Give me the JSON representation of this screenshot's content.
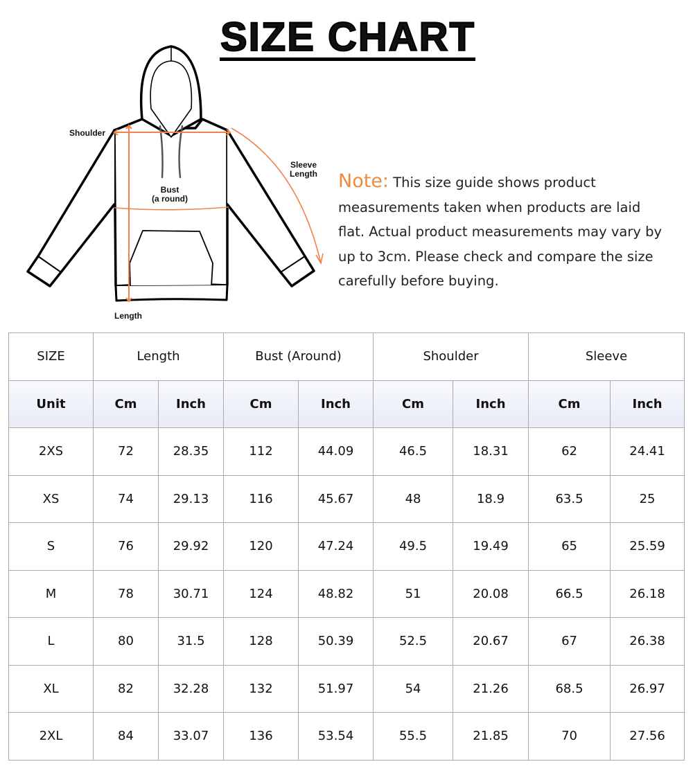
{
  "title": "SIZE CHART",
  "figure": {
    "labels": {
      "shoulder": "Shoulder",
      "sleeve_line1": "Sleeve",
      "sleeve_line2": "Length",
      "bust_line1": "Bust",
      "bust_line2": "(a round)",
      "length": "Length"
    },
    "accent_color": "#f4804a"
  },
  "note": {
    "heading": "Note:",
    "text": "This size guide shows product measurements taken when products are laid flat. Actual product measurements may vary by up to 3cm. Please check and compare the size carefully before buying."
  },
  "table": {
    "header": [
      "SIZE",
      "Length",
      "Bust (Around)",
      "Shoulder",
      "Sleeve"
    ],
    "unit_row": [
      "Unit",
      "Cm",
      "Inch",
      "Cm",
      "Inch",
      "Cm",
      "Inch",
      "Cm",
      "Inch"
    ],
    "rows": [
      [
        "2XS",
        "72",
        "28.35",
        "112",
        "44.09",
        "46.5",
        "18.31",
        "62",
        "24.41"
      ],
      [
        "XS",
        "74",
        "29.13",
        "116",
        "45.67",
        "48",
        "18.9",
        "63.5",
        "25"
      ],
      [
        "S",
        "76",
        "29.92",
        "120",
        "47.24",
        "49.5",
        "19.49",
        "65",
        "25.59"
      ],
      [
        "M",
        "78",
        "30.71",
        "124",
        "48.82",
        "51",
        "20.08",
        "66.5",
        "26.18"
      ],
      [
        "L",
        "80",
        "31.5",
        "128",
        "50.39",
        "52.5",
        "20.67",
        "67",
        "26.38"
      ],
      [
        "XL",
        "82",
        "32.28",
        "132",
        "51.97",
        "54",
        "21.26",
        "68.5",
        "26.97"
      ],
      [
        "2XL",
        "84",
        "33.07",
        "136",
        "53.54",
        "55.5",
        "21.85",
        "70",
        "27.56"
      ]
    ]
  }
}
